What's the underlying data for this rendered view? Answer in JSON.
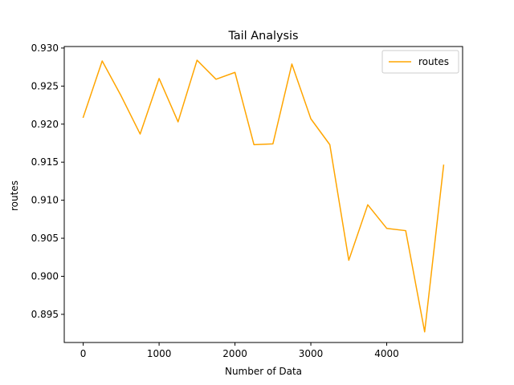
{
  "chart_data": {
    "type": "line",
    "title": "Tail Analysis",
    "xlabel": "Number of Data",
    "ylabel": "routes",
    "xlim": [
      -250,
      5000
    ],
    "ylim": [
      0.8913,
      0.9302
    ],
    "xticks": [
      0,
      1000,
      2000,
      3000,
      4000
    ],
    "xtick_labels": [
      "0",
      "1000",
      "2000",
      "3000",
      "4000"
    ],
    "yticks": [
      0.895,
      0.9,
      0.905,
      0.91,
      0.915,
      0.92,
      0.925,
      0.93
    ],
    "ytick_labels": [
      "0.895",
      "0.900",
      "0.905",
      "0.910",
      "0.915",
      "0.920",
      "0.925",
      "0.930"
    ],
    "grid": false,
    "legend": {
      "placement": "top-right",
      "entries": [
        "routes"
      ]
    },
    "series": [
      {
        "name": "routes",
        "color": "#ffa500",
        "x": [
          0,
          250,
          500,
          750,
          1000,
          1250,
          1500,
          1750,
          2000,
          2250,
          2500,
          2750,
          3000,
          3250,
          3500,
          3750,
          4000,
          4250,
          4500,
          4750
        ],
        "y": [
          0.9209,
          0.9283,
          0.9237,
          0.9187,
          0.926,
          0.9203,
          0.9284,
          0.9259,
          0.9268,
          0.9173,
          0.9174,
          0.9279,
          0.9207,
          0.9173,
          0.9021,
          0.9094,
          0.9063,
          0.906,
          0.8927,
          0.9146
        ]
      }
    ]
  }
}
